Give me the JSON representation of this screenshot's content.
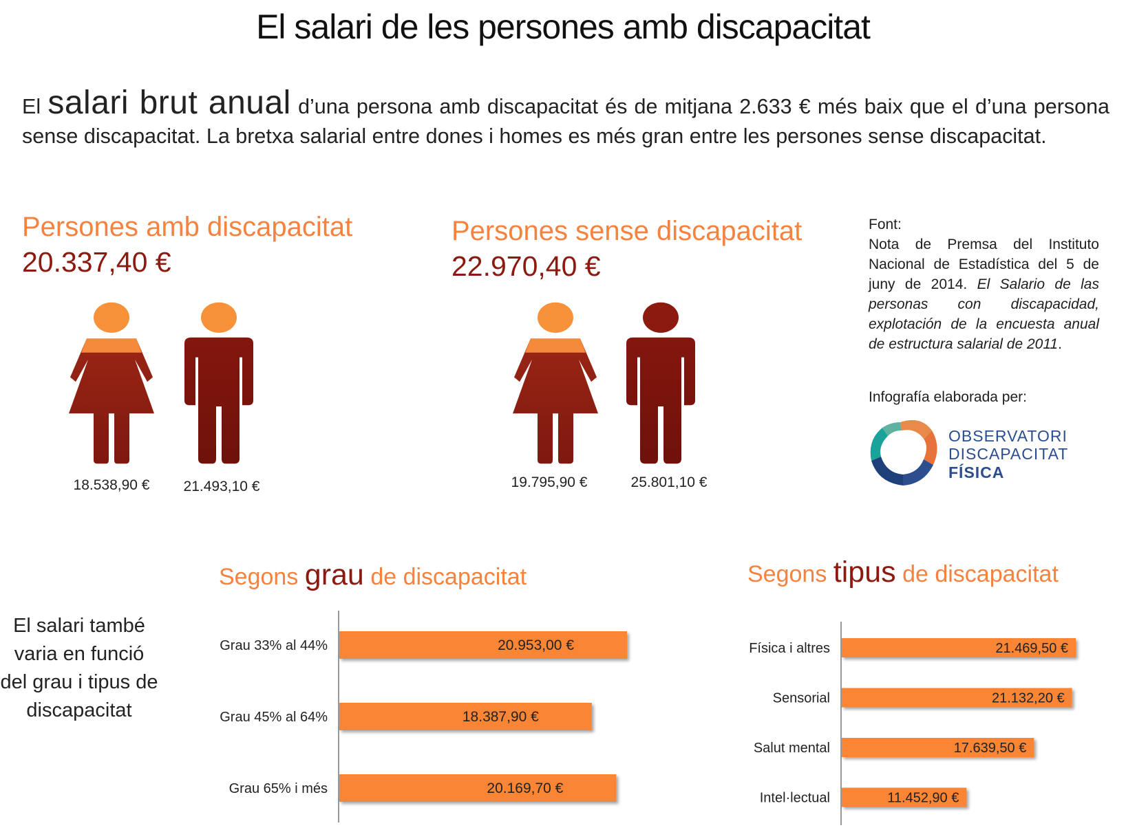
{
  "title": "El salari de les persones amb discapacitat",
  "intro": {
    "lead_small": "El",
    "lead_big": "salari brut anual",
    "rest": "d’una persona amb discapacitat és de mitjana 2.633 € més baix que el d’una persona sense discapacitat. La bretxa salarial entre dones i homes es més gran entre les persones sense discapacitat."
  },
  "groups": [
    {
      "title": "Persones amb discapacitat",
      "total": "20.337,40 €",
      "woman": {
        "label": "18.538,90 €",
        "icon": "woman-icon"
      },
      "man": {
        "label": "21.493,10 €",
        "icon": "man-icon"
      }
    },
    {
      "title": "Persones sense discapacitat",
      "total": "22.970,40 €",
      "woman": {
        "label": "19.795,90 €",
        "icon": "woman-icon"
      },
      "man": {
        "label": "25.801,10 €",
        "icon": "man-icon"
      }
    }
  ],
  "source": {
    "heading": "Font:",
    "text": "Nota de Premsa del Instituto Nacional de Estadística del 5 de juny de 2014.",
    "italic": "El Salario de las personas con discapacidad, explotación de la encuesta anual de estructura salarial de 2011",
    "end": "."
  },
  "credit": "Infografía elaborada per:",
  "logo": {
    "line1": "OBSERVATORI",
    "line2": "DISCAPACITAT",
    "line3": "FÍSICA"
  },
  "side_note": "El salari també varia en funció del grau i tipus de discapacitat",
  "sections": {
    "grau": {
      "pre": "Segons",
      "hl": "grau",
      "post": "de discapacitat"
    },
    "tipus": {
      "pre": "Segons",
      "hl": "tipus",
      "post": "de discapacitat"
    }
  },
  "colors": {
    "orange": "#f5823f",
    "dark_red": "#8b1a10",
    "bar": "#fa8535",
    "head_light": "#f7923a"
  },
  "chart_data": [
    {
      "type": "bar",
      "orientation": "horizontal",
      "title": "Segons grau de discapacitat",
      "categories": [
        "Grau 33% al 44%",
        "Grau 45% al 64%",
        "Grau 65% i més"
      ],
      "values": [
        20953.0,
        18387.9,
        20169.7
      ],
      "data_labels": [
        "20.953,00  €",
        "18.387,90 €",
        "20.169,70  €"
      ]
    },
    {
      "type": "bar",
      "orientation": "horizontal",
      "title": "Segons tipus de discapacitat",
      "categories": [
        "Física i altres",
        "Sensorial",
        "Salut mental",
        "Intel·lectual"
      ],
      "values": [
        21469.5,
        21132.2,
        17639.5,
        11452.9
      ],
      "data_labels": [
        "21.469,50 €",
        "21.132,20 €",
        "17.639,50  €",
        "11.452,90 €"
      ]
    }
  ]
}
